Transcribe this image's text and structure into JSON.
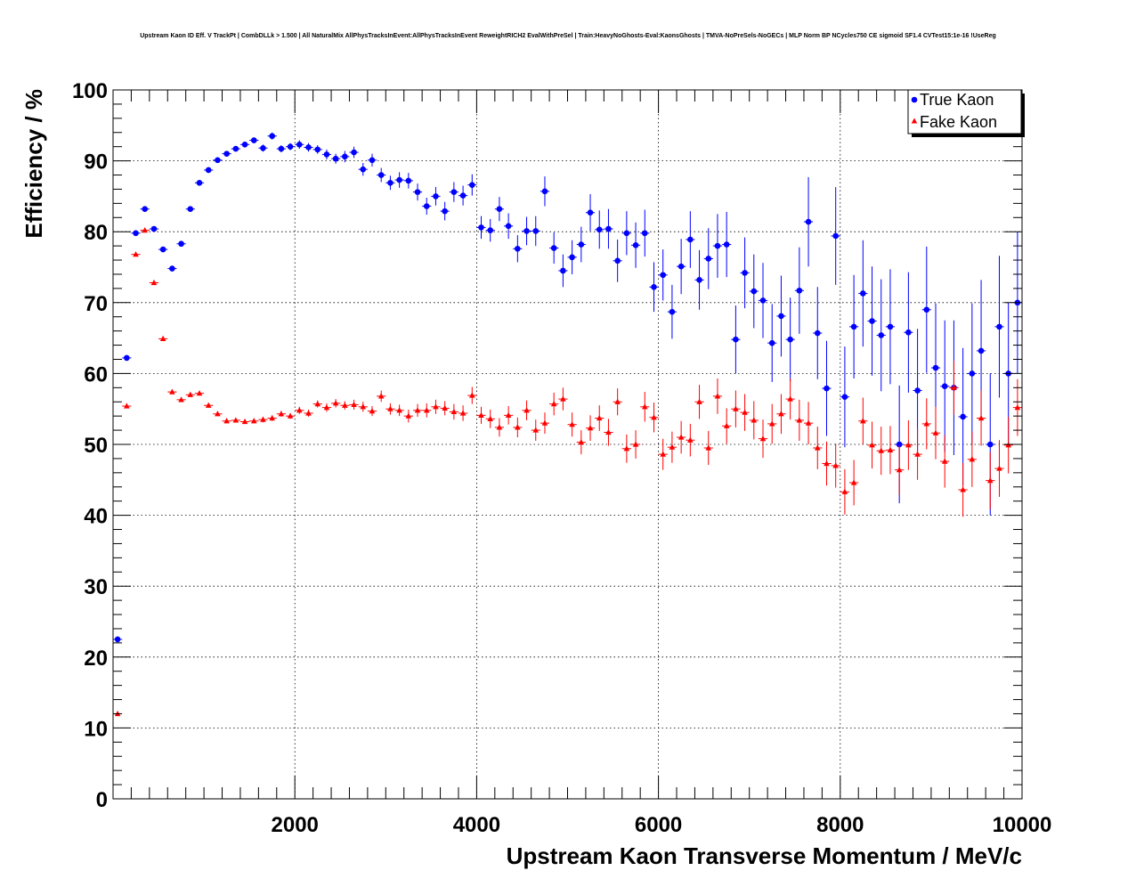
{
  "chart_data": {
    "type": "scatter",
    "title": "Upstream Kaon ID Eff. V TrackPt | CombDLLk > 1.500 | All NaturalMix AllPhysTracksInEvent:AllPhysTracksInEvent ReweightRICH2 EvalWithPreSel | Train:HeavyNoGhosts-Eval:KaonsGhosts | TMVA-NoPreSels-NoGECs | MLP Norm BP NCycles750 CE sigmoid SF1.4 CVTest15:1e-16 !UseReg",
    "xlabel": "Upstream Kaon Transverse Momentum / MeV/c",
    "ylabel": "Efficiency / %",
    "xlim": [
      0,
      10000
    ],
    "ylim": [
      0,
      100
    ],
    "xticks": [
      2000,
      4000,
      6000,
      8000,
      10000
    ],
    "yticks": [
      0,
      10,
      20,
      30,
      40,
      50,
      60,
      70,
      80,
      90,
      100
    ],
    "grid": true,
    "legend_position": "top-right",
    "series": [
      {
        "name": "True Kaon",
        "color": "#0000ff",
        "marker": "circle",
        "x": [
          50,
          150,
          250,
          350,
          450,
          550,
          650,
          750,
          850,
          950,
          1050,
          1150,
          1250,
          1350,
          1450,
          1550,
          1650,
          1750,
          1850,
          1950,
          2050,
          2150,
          2250,
          2350,
          2450,
          2550,
          2650,
          2750,
          2850,
          2950,
          3050,
          3150,
          3250,
          3350,
          3450,
          3550,
          3650,
          3750,
          3850,
          3950,
          4050,
          4150,
          4250,
          4350,
          4450,
          4550,
          4650,
          4750,
          4850,
          4950,
          5050,
          5150,
          5250,
          5350,
          5450,
          5550,
          5650,
          5750,
          5850,
          5950,
          6050,
          6150,
          6250,
          6350,
          6450,
          6550,
          6650,
          6750,
          6850,
          6950,
          7050,
          7150,
          7250,
          7350,
          7450,
          7550,
          7650,
          7750,
          7850,
          7950,
          8050,
          8150,
          8250,
          8350,
          8450,
          8550,
          8650,
          8750,
          8850,
          8950,
          9050,
          9150,
          9250,
          9350,
          9450,
          9550,
          9650,
          9750,
          9850,
          9950
        ],
        "y": [
          22.5,
          62.2,
          79.8,
          83.2,
          80.4,
          77.5,
          74.8,
          78.3,
          83.2,
          86.9,
          88.7,
          90.1,
          91.0,
          91.7,
          92.3,
          92.9,
          91.8,
          93.5,
          91.7,
          92.0,
          92.3,
          91.9,
          91.6,
          90.9,
          90.3,
          90.6,
          91.2,
          88.8,
          90.1,
          88.0,
          86.9,
          87.3,
          87.2,
          85.6,
          83.6,
          85.0,
          82.9,
          85.6,
          85.1,
          86.6,
          80.6,
          80.2,
          83.2,
          80.8,
          77.6,
          80.1,
          80.1,
          85.7,
          77.7,
          74.5,
          76.4,
          78.2,
          82.7,
          80.3,
          80.4,
          75.9,
          79.8,
          78.1,
          79.8,
          72.2,
          73.9,
          68.7,
          75.1,
          78.9,
          73.2,
          76.2,
          78.0,
          78.2,
          64.8,
          74.2,
          71.6,
          70.3,
          64.3,
          68.1,
          64.8,
          71.7,
          81.4,
          65.7,
          57.9,
          79.4,
          56.7,
          66.6,
          71.3,
          67.4,
          65.4,
          66.6,
          50.0,
          65.8,
          57.6,
          69.0,
          60.8,
          58.2,
          58.0,
          53.9,
          60.0,
          63.2,
          50.0,
          66.6,
          60.0,
          70.0
        ],
        "err": [
          0.4,
          0.4,
          0.4,
          0.4,
          0.4,
          0.4,
          0.4,
          0.4,
          0.4,
          0.4,
          0.4,
          0.4,
          0.4,
          0.4,
          0.4,
          0.4,
          0.5,
          0.5,
          0.5,
          0.5,
          0.6,
          0.6,
          0.6,
          0.7,
          0.7,
          0.8,
          0.8,
          0.9,
          0.9,
          1.0,
          1.0,
          1.1,
          1.1,
          1.2,
          1.2,
          1.3,
          1.3,
          1.4,
          1.4,
          1.5,
          1.6,
          1.6,
          1.7,
          1.8,
          1.9,
          2.0,
          2.1,
          2.1,
          2.2,
          2.3,
          2.4,
          2.5,
          2.6,
          2.7,
          2.8,
          3.0,
          3.1,
          3.2,
          3.3,
          3.5,
          3.6,
          3.8,
          3.9,
          4.0,
          4.2,
          4.3,
          4.5,
          4.6,
          4.8,
          5.0,
          5.2,
          5.3,
          5.5,
          5.7,
          5.9,
          6.1,
          6.3,
          6.5,
          6.7,
          6.9,
          7.1,
          7.3,
          7.5,
          7.7,
          7.9,
          8.1,
          8.3,
          8.5,
          8.7,
          8.9,
          9.1,
          9.3,
          9.5,
          9.7,
          9.9,
          10.0,
          10.0,
          10.0,
          10.0,
          10.0
        ]
      },
      {
        "name": "Fake Kaon",
        "color": "#ff0000",
        "marker": "triangle",
        "x": [
          50,
          150,
          250,
          350,
          450,
          550,
          650,
          750,
          850,
          950,
          1050,
          1150,
          1250,
          1350,
          1450,
          1550,
          1650,
          1750,
          1850,
          1950,
          2050,
          2150,
          2250,
          2350,
          2450,
          2550,
          2650,
          2750,
          2850,
          2950,
          3050,
          3150,
          3250,
          3350,
          3450,
          3550,
          3650,
          3750,
          3850,
          3950,
          4050,
          4150,
          4250,
          4350,
          4450,
          4550,
          4650,
          4750,
          4850,
          4950,
          5050,
          5150,
          5250,
          5350,
          5450,
          5550,
          5650,
          5750,
          5850,
          5950,
          6050,
          6150,
          6250,
          6350,
          6450,
          6550,
          6650,
          6750,
          6850,
          6950,
          7050,
          7150,
          7250,
          7350,
          7450,
          7550,
          7650,
          7750,
          7850,
          7950,
          8050,
          8150,
          8250,
          8350,
          8450,
          8550,
          8650,
          8750,
          8850,
          8950,
          9050,
          9150,
          9250,
          9350,
          9450,
          9550,
          9650,
          9750,
          9850,
          9950
        ],
        "y": [
          12.0,
          55.4,
          76.8,
          80.2,
          72.8,
          64.9,
          57.4,
          56.3,
          57.0,
          57.2,
          55.5,
          54.3,
          53.3,
          53.4,
          53.2,
          53.3,
          53.5,
          53.7,
          54.3,
          54.0,
          54.8,
          54.4,
          55.7,
          55.2,
          55.8,
          55.5,
          55.6,
          55.3,
          54.7,
          56.8,
          55.0,
          54.8,
          54.0,
          54.8,
          54.8,
          55.3,
          55.1,
          54.6,
          54.4,
          56.9,
          54.1,
          53.6,
          52.4,
          54.1,
          52.4,
          54.8,
          52.0,
          53.0,
          55.7,
          56.4,
          52.8,
          50.3,
          52.3,
          53.7,
          51.7,
          56.0,
          49.4,
          50.0,
          55.3,
          53.8,
          48.6,
          49.6,
          51.0,
          50.6,
          56.0,
          49.5,
          56.8,
          52.6,
          55.0,
          54.5,
          53.4,
          50.8,
          52.9,
          54.3,
          56.4,
          53.4,
          53.0,
          49.5,
          47.3,
          47.0,
          43.3,
          44.6,
          53.3,
          49.9,
          49.1,
          49.2,
          46.4,
          49.9,
          48.6,
          52.9,
          51.6,
          47.6,
          58.0,
          43.6,
          47.9,
          53.7,
          44.9,
          46.6,
          49.9,
          55.2
        ],
        "err": [
          0.3,
          0.3,
          0.3,
          0.3,
          0.3,
          0.3,
          0.3,
          0.3,
          0.3,
          0.3,
          0.3,
          0.3,
          0.3,
          0.3,
          0.3,
          0.3,
          0.4,
          0.4,
          0.4,
          0.4,
          0.5,
          0.5,
          0.5,
          0.6,
          0.6,
          0.6,
          0.7,
          0.7,
          0.7,
          0.8,
          0.8,
          0.8,
          0.9,
          0.9,
          1.0,
          1.0,
          1.0,
          1.1,
          1.1,
          1.2,
          1.2,
          1.3,
          1.3,
          1.3,
          1.4,
          1.4,
          1.5,
          1.5,
          1.6,
          1.6,
          1.7,
          1.7,
          1.8,
          1.8,
          1.9,
          1.9,
          2.0,
          2.0,
          2.1,
          2.1,
          2.2,
          2.2,
          2.3,
          2.3,
          2.4,
          2.4,
          2.5,
          2.5,
          2.6,
          2.6,
          2.7,
          2.7,
          2.8,
          2.8,
          2.9,
          2.9,
          3.0,
          3.0,
          3.1,
          3.1,
          3.2,
          3.2,
          3.3,
          3.3,
          3.4,
          3.4,
          3.5,
          3.5,
          3.6,
          3.6,
          3.7,
          3.7,
          3.8,
          3.8,
          3.9,
          3.9,
          4.0,
          4.0,
          4.0,
          4.0
        ]
      }
    ]
  }
}
